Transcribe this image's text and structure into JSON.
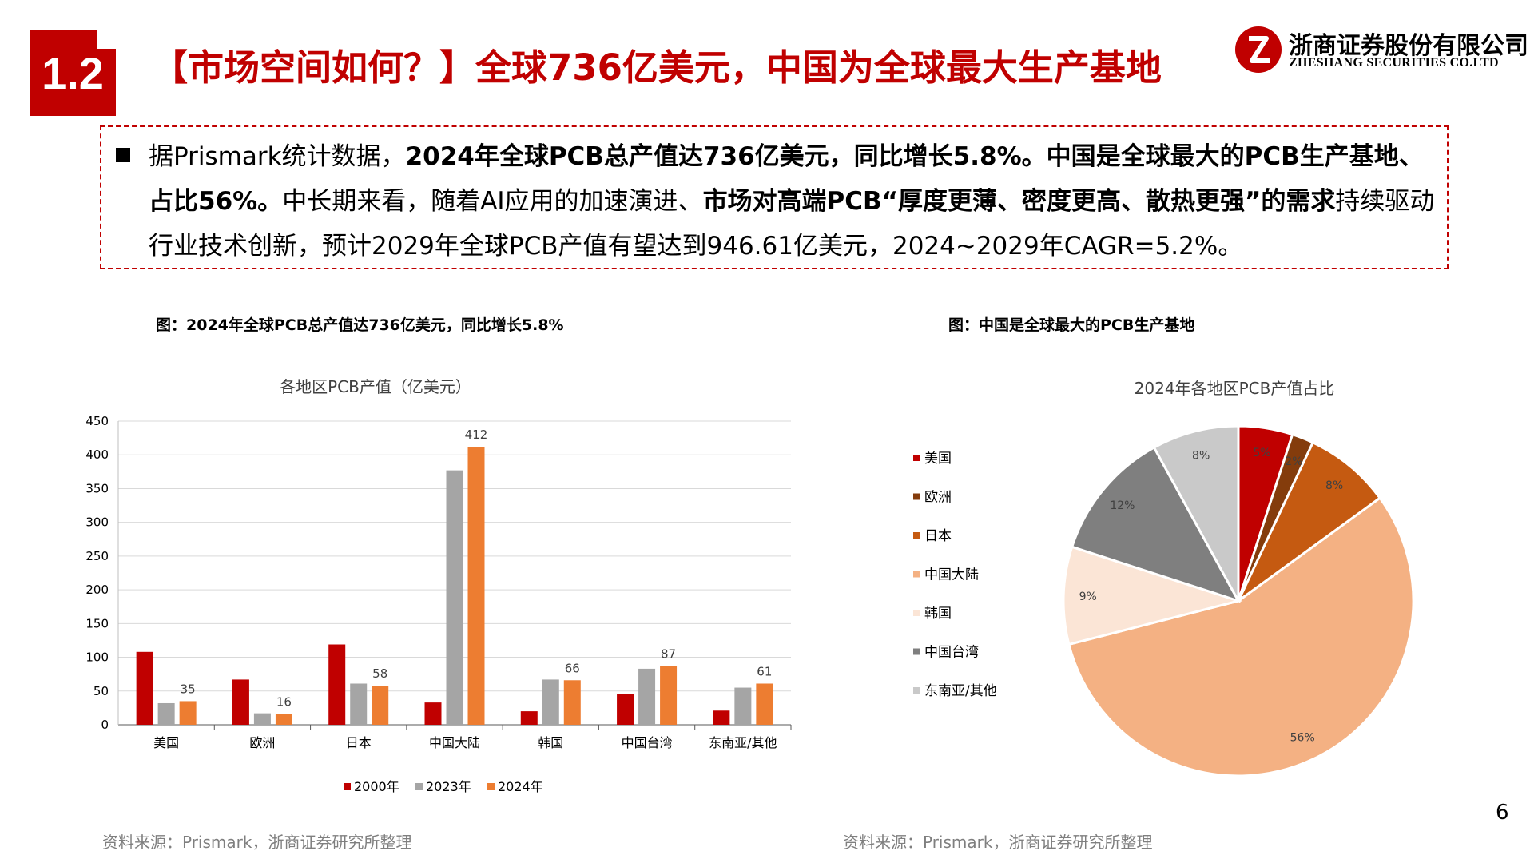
{
  "header": {
    "section_number": "1.2",
    "title": "【市场空间如何？】全球736亿美元，中国为全球最大生产基地",
    "logo_cn": "浙商证券股份有限公司",
    "logo_en": "ZHESHANG SECURITIES CO.LTD"
  },
  "summary": {
    "p1": "据Prismark统计数据，",
    "p2": "2024年全球PCB总产值达736亿美元，同比增长5.8%。中国是全球最大的PCB生产基地、占比56%。",
    "p3": "中长期来看，随着AI应用的加速演进、",
    "p4": "市场对高端PCB“厚度更薄、密度更高、散热更强”的需求",
    "p5": "持续驱动行业技术创新，预计2029年全球PCB产值有望达到946.61亿美元，2024~2029年CAGR=5.2%。"
  },
  "left_figure": {
    "caption": "图：2024年全球PCB总产值达736亿美元，同比增长5.8%",
    "source": "资料来源：Prismark，浙商证券研究所整理"
  },
  "right_figure": {
    "caption": "图：中国是全球最大的PCB生产基地",
    "source": "资料来源：Prismark，浙商证券研究所整理"
  },
  "page_number": "6",
  "chart_data": [
    {
      "type": "bar",
      "title": "各地区PCB产值（亿美元）",
      "categories": [
        "美国",
        "欧洲",
        "日本",
        "中国大陆",
        "韩国",
        "中国台湾",
        "东南亚/其他"
      ],
      "series": [
        {
          "name": "2000年",
          "color": "#c00000",
          "values": [
            108,
            67,
            119,
            33,
            20,
            45,
            21
          ]
        },
        {
          "name": "2023年",
          "color": "#a5a5a5",
          "values": [
            32,
            17,
            61,
            377,
            67,
            83,
            55
          ]
        },
        {
          "name": "2024年",
          "color": "#ed7d31",
          "values": [
            35,
            16,
            58,
            412,
            66,
            87,
            61
          ]
        }
      ],
      "data_labels": {
        "2024年": [
          "35",
          "16",
          "58",
          "412",
          "66",
          "87",
          "61"
        ]
      },
      "yticks": [
        "0",
        "50",
        "100",
        "150",
        "200",
        "250",
        "300",
        "350",
        "400",
        "450"
      ],
      "ylim": [
        0,
        450
      ],
      "grid": true,
      "legend_position": "bottom"
    },
    {
      "type": "pie",
      "title": "2024年各地区PCB产值占比",
      "slices": [
        {
          "label": "美国",
          "value": 5,
          "text": "5%",
          "color": "#c00000"
        },
        {
          "label": "欧洲",
          "value": 2,
          "text": "2%",
          "color": "#843c0c"
        },
        {
          "label": "日本",
          "value": 8,
          "text": "8%",
          "color": "#c55a11"
        },
        {
          "label": "中国大陆",
          "value": 56,
          "text": "56%",
          "color": "#f4b183"
        },
        {
          "label": "韩国",
          "value": 9,
          "text": "9%",
          "color": "#fbe5d6"
        },
        {
          "label": "中国台湾",
          "value": 12,
          "text": "12%",
          "color": "#7f7f7f"
        },
        {
          "label": "东南亚/其他",
          "value": 8,
          "text": "8%",
          "color": "#c9c9c9"
        }
      ],
      "legend_position": "left"
    }
  ]
}
